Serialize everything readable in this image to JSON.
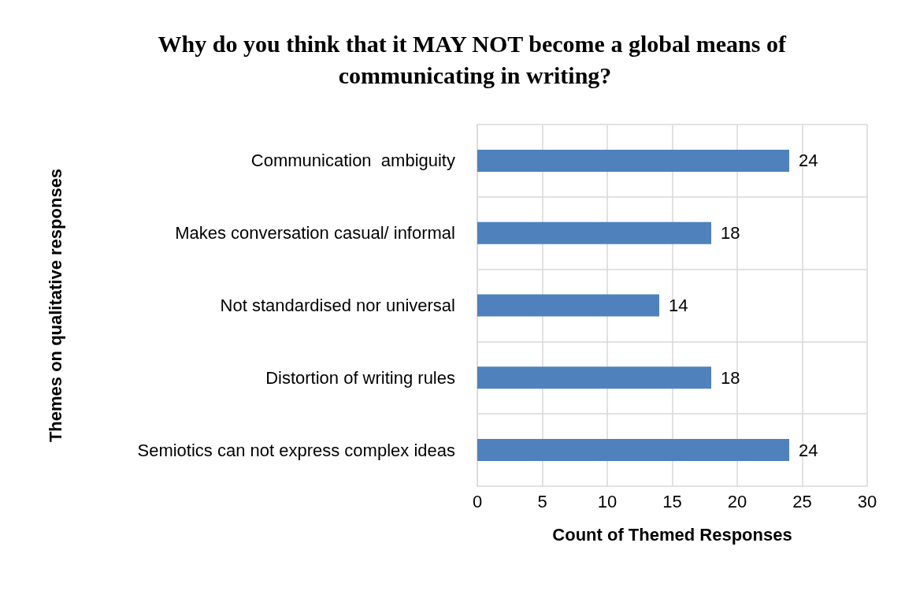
{
  "chart_data": {
    "type": "bar",
    "orientation": "horizontal",
    "title": "Why do you think that it MAY NOT become a global means of communicating in writing?",
    "xlabel": "Count of Themed Responses",
    "ylabel": "Themes on qualitative responses",
    "categories": [
      "Communication  ambiguity",
      "Makes conversation casual/ informal",
      "Not standardised nor universal",
      "Distortion of writing rules",
      "Semiotics can not express complex ideas"
    ],
    "values": [
      24,
      18,
      14,
      18,
      24
    ],
    "color": "#4f81bd",
    "xlim": [
      0,
      30
    ],
    "xticks": [
      0,
      5,
      10,
      15,
      20,
      25,
      30
    ],
    "grid": true,
    "data_labels": true
  }
}
